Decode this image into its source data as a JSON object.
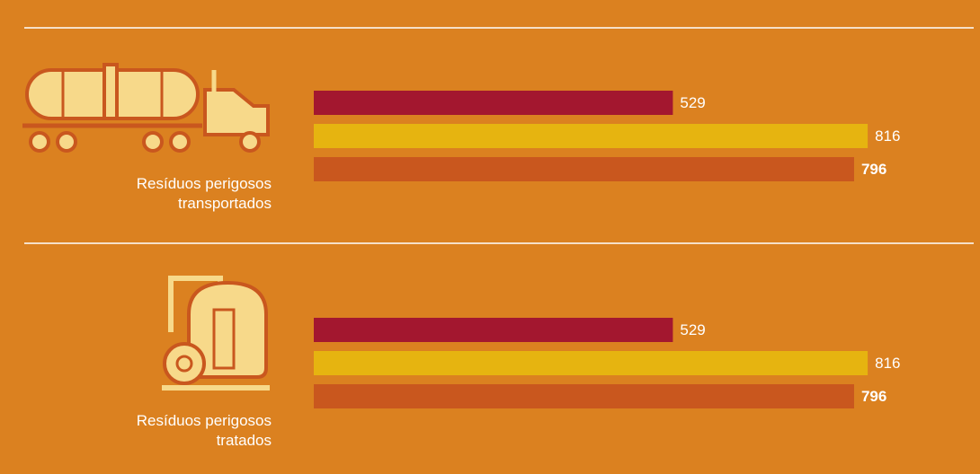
{
  "chart_data": [
    {
      "type": "bar",
      "title": "Resíduos perigosos transportados",
      "values": [
        529,
        816,
        796
      ],
      "colors": [
        "#a3172f",
        "#e6b410",
        "#c9571e"
      ]
    },
    {
      "type": "bar",
      "title": "Resíduos perigosos tratados",
      "values": [
        529,
        816,
        796
      ],
      "colors": [
        "#a3172f",
        "#e6b410",
        "#c9571e"
      ]
    }
  ]
}
